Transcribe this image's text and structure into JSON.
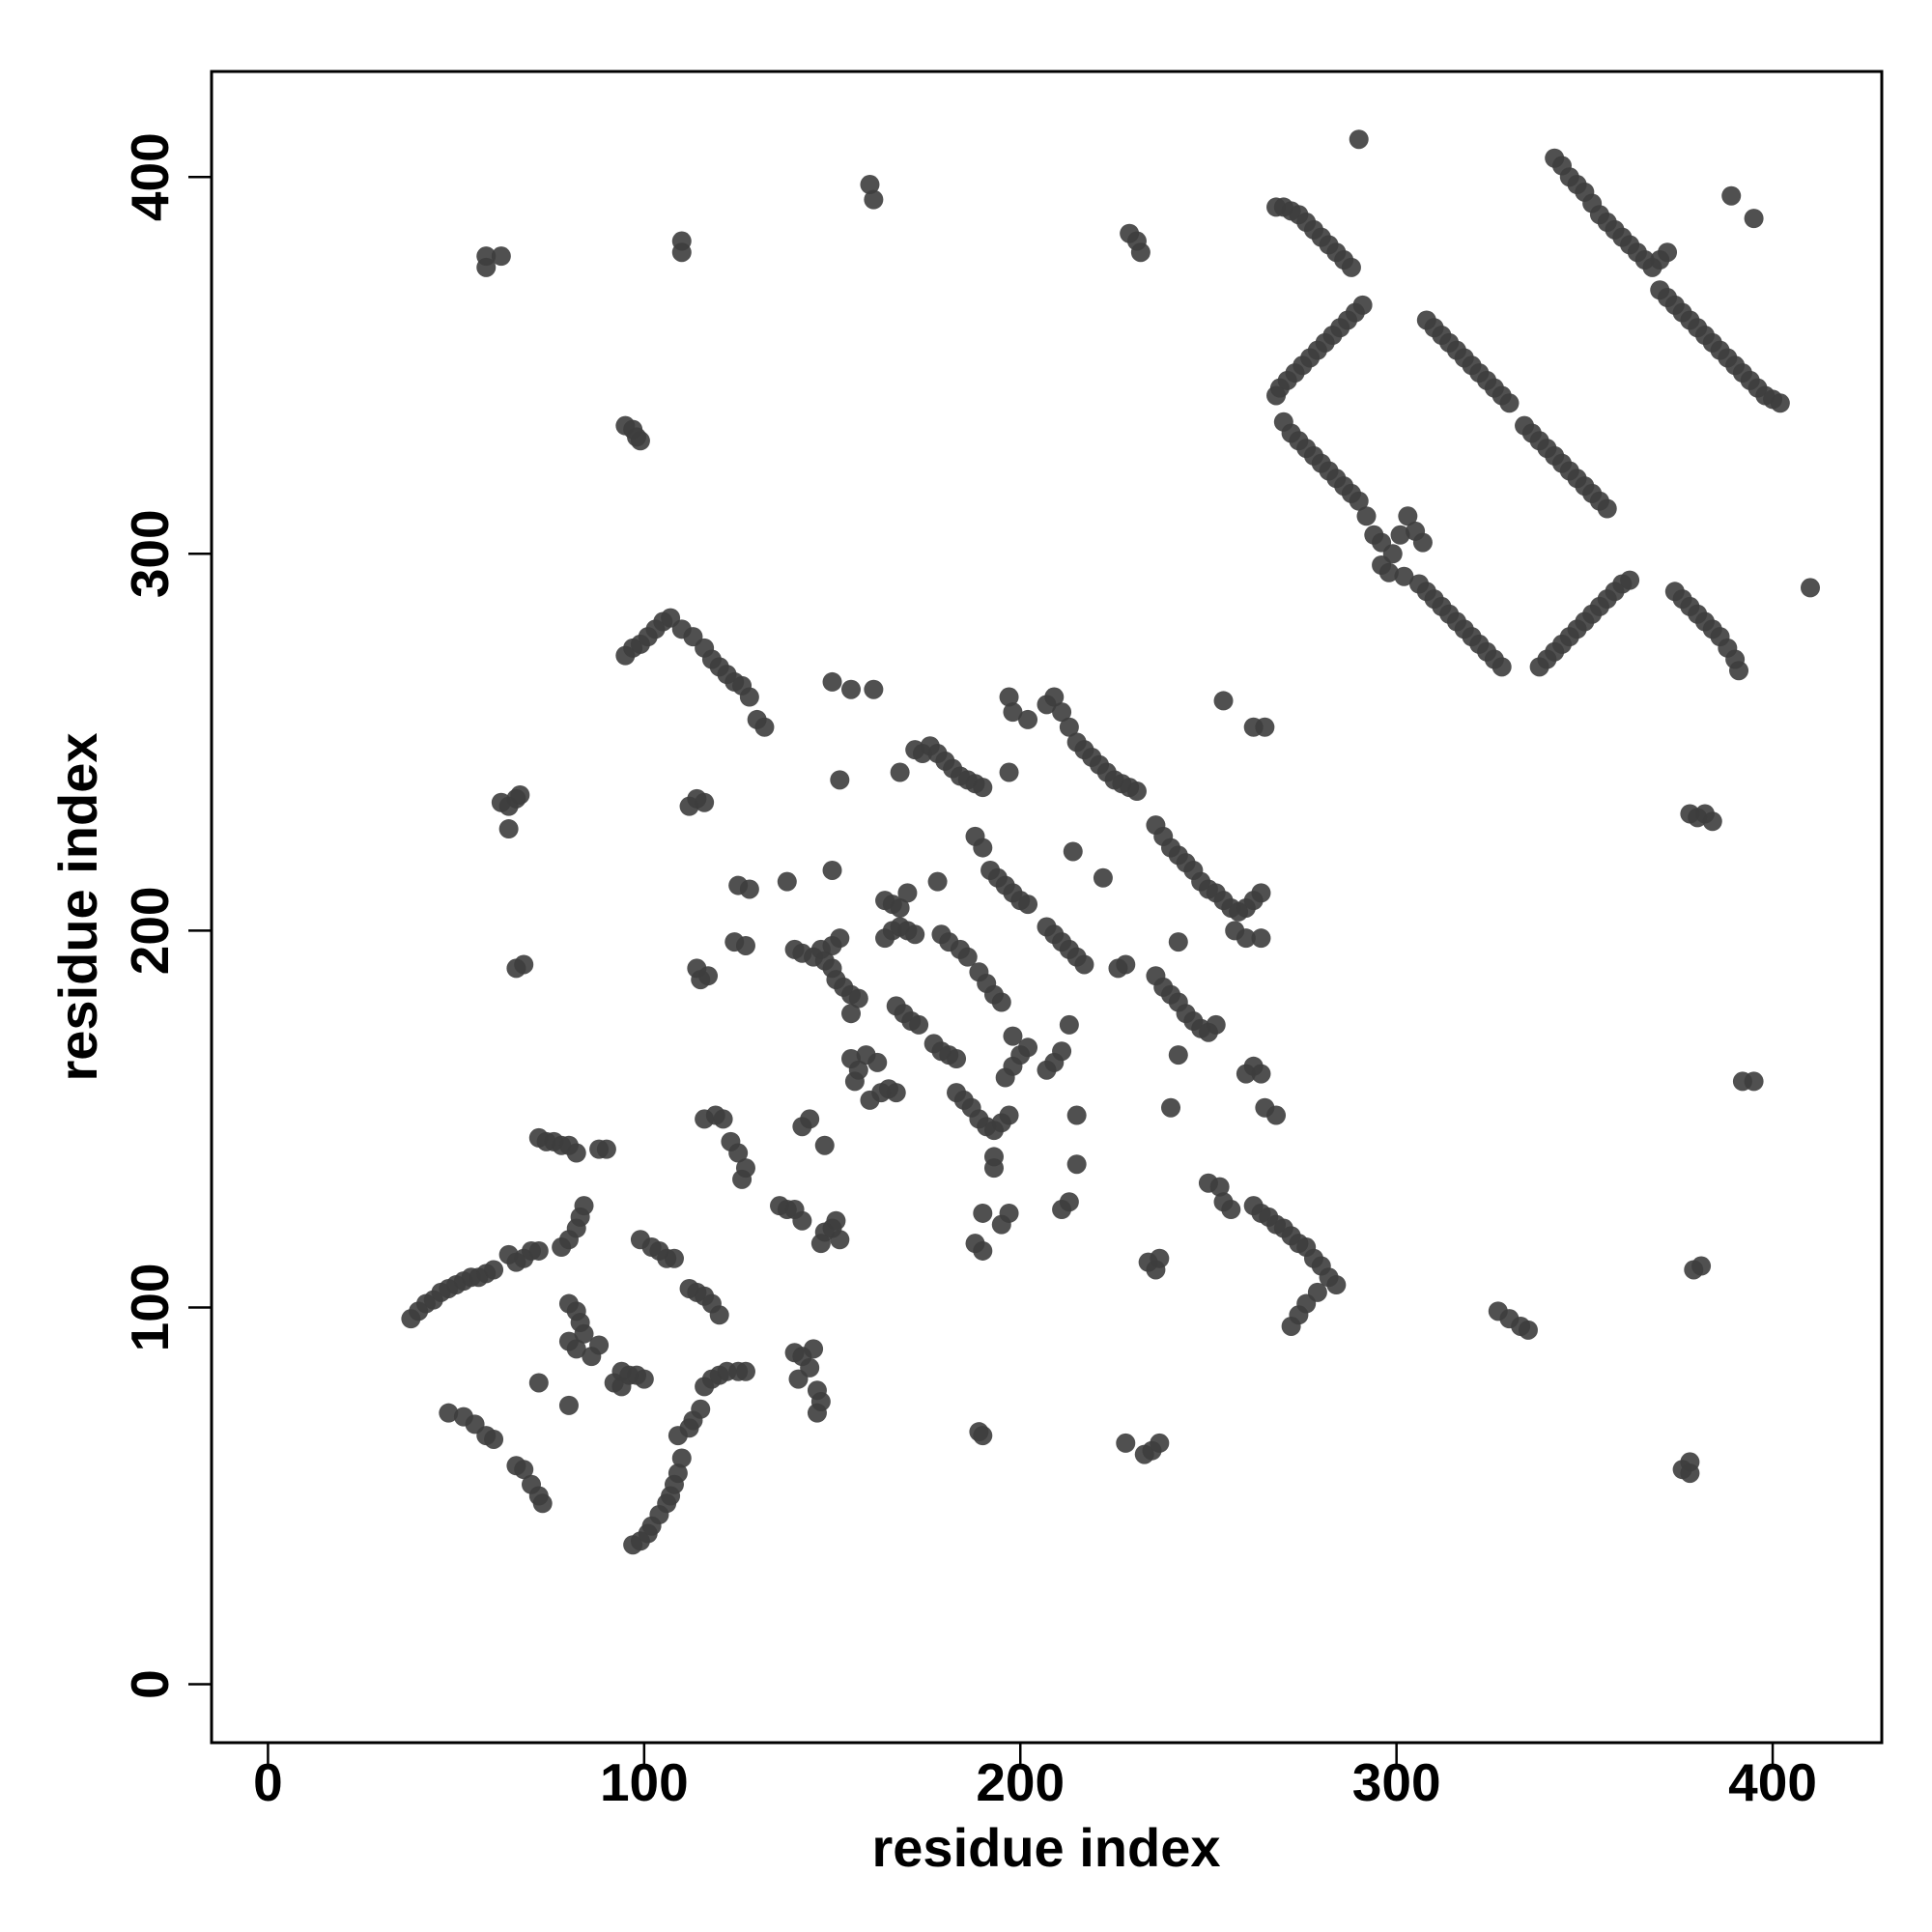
{
  "chart_data": {
    "type": "scatter",
    "x_label": "residue index",
    "y_label": "residue index",
    "color": "#3d3d3d",
    "xlim": [
      -15,
      429
    ],
    "ylim": [
      -15.5,
      428
    ],
    "xticks": [
      0,
      100,
      200,
      300,
      400
    ],
    "yticks": [
      0,
      100,
      200,
      300,
      400
    ],
    "x": [
      38,
      40,
      42,
      44,
      46,
      48,
      50,
      52,
      54,
      56,
      58,
      60,
      64,
      66,
      68,
      70,
      72,
      48,
      52,
      55,
      58,
      60,
      66,
      68,
      70,
      72,
      73,
      72,
      74,
      76,
      78,
      80,
      82,
      88,
      90,
      78,
      80,
      82,
      83,
      84,
      80,
      82,
      83,
      80,
      82,
      84,
      88,
      86,
      72,
      80,
      92,
      94,
      96,
      98,
      100,
      94,
      97,
      99,
      101,
      102,
      104,
      106,
      107,
      108,
      109,
      110,
      109,
      112,
      113,
      115,
      116,
      118,
      120,
      122,
      125,
      127,
      99,
      102,
      104,
      106,
      108,
      112,
      114,
      116,
      118,
      120,
      62,
      64,
      66,
      67,
      64,
      66,
      68,
      110,
      110,
      58,
      58,
      62,
      95,
      97,
      98,
      99,
      95,
      97,
      99,
      101,
      103,
      105,
      107,
      110,
      113,
      116,
      118,
      120,
      122,
      124,
      126,
      128,
      130,
      132,
      112,
      114,
      116,
      114,
      117,
      115,
      116,
      119,
      121,
      123,
      125,
      127,
      126,
      124,
      127,
      125,
      128,
      136,
      138,
      140,
      142,
      142,
      144,
      148,
      140,
      142,
      145,
      148,
      150,
      151,
      153,
      155,
      157,
      155,
      147,
      150,
      152,
      147,
      148,
      150,
      152,
      151,
      140,
      142,
      145,
      144,
      146,
      147,
      146,
      141,
      152,
      150,
      155,
      161,
      138,
      150,
      155,
      157,
      156,
      159,
      162,
      163,
      165,
      167,
      160,
      164,
      166,
      168,
      170,
      164,
      166,
      168,
      170,
      172,
      167,
      169,
      171,
      173,
      172,
      174,
      176,
      178,
      180,
      182,
      184,
      186,
      188,
      190,
      168,
      177,
      179,
      181,
      183,
      178,
      179,
      181,
      184,
      186,
      189,
      191,
      193,
      195,
      188,
      190,
      197,
      183,
      185,
      187,
      189,
      191,
      193,
      195,
      197,
      193,
      193,
      192,
      194,
      196,
      198,
      200,
      202,
      196,
      198,
      200,
      202,
      198,
      190,
      195,
      197,
      188,
      190,
      197,
      198,
      202,
      207,
      209,
      211,
      213,
      215,
      217,
      219,
      221,
      223,
      225,
      227,
      229,
      231,
      207,
      209,
      211,
      213,
      215,
      217,
      207,
      209,
      211,
      213,
      215,
      213,
      211,
      215,
      214,
      222,
      226,
      228,
      236,
      238,
      240,
      242,
      244,
      246,
      248,
      250,
      252,
      254,
      256,
      258,
      260,
      262,
      264,
      236,
      238,
      240,
      242,
      244,
      246,
      248,
      250,
      252,
      242,
      242,
      240,
      254,
      262,
      265,
      234,
      236,
      237,
      228,
      233,
      235,
      237,
      250,
      253,
      254,
      256,
      257,
      260,
      264,
      260,
      262,
      264,
      265,
      268,
      262,
      264,
      266,
      268,
      270,
      272,
      274,
      276,
      278,
      280,
      282,
      284,
      279,
      276,
      274,
      272,
      229,
      231,
      232,
      160,
      161,
      189,
      190,
      268,
      270,
      272,
      274,
      276,
      278,
      280,
      282,
      284,
      286,
      288,
      268,
      269,
      271,
      273,
      275,
      277,
      279,
      281,
      283,
      285,
      287,
      289,
      291,
      270,
      272,
      274,
      276,
      278,
      280,
      282,
      284,
      286,
      288,
      290,
      292,
      294,
      296,
      299,
      301,
      303,
      305,
      307,
      296,
      298,
      302,
      306,
      308,
      310,
      312,
      314,
      316,
      318,
      320,
      322,
      324,
      326,
      328,
      308,
      310,
      312,
      314,
      316,
      318,
      320,
      322,
      324,
      326,
      328,
      330,
      334,
      336,
      338,
      340,
      342,
      344,
      346,
      348,
      350,
      352,
      354,
      356,
      338,
      340,
      342,
      344,
      346,
      348,
      350,
      352,
      354,
      356,
      358,
      360,
      362,
      342,
      344,
      346,
      348,
      350,
      352,
      354,
      356,
      358,
      360,
      362,
      364,
      366,
      368,
      370,
      372,
      370,
      372,
      374,
      376,
      378,
      380,
      382,
      384,
      386,
      388,
      390,
      392,
      394,
      396,
      398,
      400,
      402,
      374,
      376,
      378,
      380,
      382,
      384,
      386,
      388,
      390,
      391,
      290,
      389,
      395,
      410,
      378,
      380,
      382,
      384,
      392,
      395,
      379,
      381,
      376,
      378,
      378,
      327,
      330,
      333,
      335
    ],
    "values": [
      97,
      99,
      101,
      102,
      104,
      105,
      106,
      107,
      108,
      108,
      109,
      110,
      114,
      112,
      113,
      115,
      115,
      72,
      71,
      69,
      66,
      65,
      58,
      57,
      53,
      50,
      48,
      145,
      144,
      144,
      143,
      143,
      141,
      142,
      142,
      116,
      118,
      121,
      124,
      127,
      101,
      99,
      96,
      91,
      89,
      93,
      90,
      87,
      80,
      74,
      80,
      83,
      82,
      82,
      81,
      79,
      37,
      38,
      40,
      42,
      45,
      48,
      50,
      53,
      56,
      60,
      66,
      68,
      70,
      73,
      79,
      81,
      82,
      83,
      83,
      83,
      118,
      116,
      115,
      113,
      113,
      105,
      104,
      103,
      101,
      98,
      234,
      233,
      235,
      236,
      227,
      190,
      191,
      383,
      380,
      379,
      376,
      379,
      334,
      333,
      331,
      330,
      273,
      275,
      276,
      278,
      280,
      282,
      283,
      280,
      278,
      275,
      272,
      270,
      268,
      266,
      265,
      262,
      256,
      254,
      233,
      235,
      234,
      190,
      188,
      187,
      150,
      151,
      150,
      144,
      141,
      137,
      134,
      197,
      196,
      212,
      211,
      127,
      126,
      126,
      123,
      148,
      150,
      143,
      195,
      194,
      193,
      192,
      190,
      187,
      185,
      183,
      182,
      178,
      195,
      196,
      198,
      117,
      120,
      121,
      118,
      123,
      88,
      87,
      89,
      84,
      78,
      75,
      72,
      81,
      240,
      266,
      264,
      264,
      213,
      216,
      166,
      163,
      160,
      167,
      165,
      157,
      158,
      157,
      155,
      208,
      207,
      206,
      210,
      198,
      200,
      201,
      200,
      199,
      180,
      178,
      176,
      175,
      248,
      247,
      249,
      247,
      245,
      243,
      241,
      240,
      239,
      238,
      242,
      170,
      168,
      167,
      166,
      213,
      199,
      197,
      195,
      193,
      189,
      186,
      183,
      181,
      225,
      222,
      242,
      157,
      155,
      153,
      150,
      148,
      147,
      149,
      151,
      140,
      137,
      216,
      214,
      212,
      210,
      208,
      207,
      161,
      164,
      167,
      169,
      172,
      125,
      122,
      125,
      117,
      115,
      262,
      258,
      256,
      260,
      262,
      258,
      254,
      250,
      248,
      246,
      244,
      242,
      240,
      239,
      238,
      237,
      201,
      199,
      197,
      195,
      193,
      191,
      163,
      165,
      168,
      175,
      138,
      128,
      126,
      151,
      221,
      214,
      190,
      191,
      228,
      225,
      222,
      220,
      218,
      216,
      213,
      211,
      210,
      208,
      206,
      205,
      206,
      208,
      210,
      188,
      185,
      183,
      181,
      178,
      176,
      174,
      173,
      175,
      197,
      167,
      153,
      261,
      254,
      254,
      112,
      110,
      113,
      64,
      61,
      62,
      64,
      133,
      132,
      128,
      126,
      200,
      198,
      198,
      162,
      164,
      162,
      153,
      151,
      127,
      125,
      124,
      122,
      121,
      119,
      117,
      116,
      113,
      111,
      108,
      106,
      104,
      101,
      98,
      95,
      385,
      383,
      380,
      398,
      394,
      67,
      66,
      392,
      392,
      391,
      390,
      388,
      386,
      384,
      382,
      380,
      378,
      376,
      342,
      344,
      346,
      348,
      350,
      352,
      354,
      356,
      358,
      360,
      362,
      364,
      366,
      335,
      332,
      330,
      328,
      326,
      324,
      322,
      320,
      318,
      316,
      314,
      310,
      305,
      303,
      300,
      305,
      310,
      306,
      303,
      297,
      295,
      294,
      292,
      290,
      288,
      286,
      284,
      282,
      280,
      278,
      276,
      274,
      272,
      270,
      362,
      360,
      358,
      356,
      354,
      352,
      350,
      348,
      346,
      344,
      342,
      340,
      334,
      332,
      330,
      328,
      326,
      324,
      322,
      320,
      318,
      316,
      314,
      312,
      270,
      272,
      274,
      276,
      278,
      280,
      282,
      284,
      286,
      288,
      290,
      292,
      293,
      405,
      403,
      400,
      398,
      396,
      393,
      390,
      388,
      386,
      384,
      382,
      380,
      378,
      376,
      378,
      380,
      370,
      368,
      366,
      364,
      362,
      360,
      358,
      356,
      354,
      352,
      350,
      348,
      346,
      344,
      342,
      341,
      340,
      290,
      288,
      286,
      284,
      282,
      280,
      278,
      275,
      272,
      269,
      410,
      395,
      389,
      291,
      231,
      230,
      231,
      229,
      160,
      160,
      110,
      111,
      57,
      59,
      56,
      99,
      97,
      95,
      94
    ]
  }
}
